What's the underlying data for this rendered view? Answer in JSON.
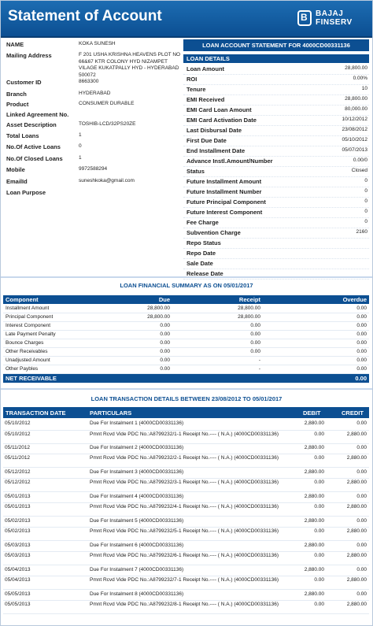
{
  "header": {
    "title": "Statement of Account",
    "logo_line1": "BAJAJ",
    "logo_line2": "FINSERV"
  },
  "customer": [
    {
      "label": "NAME",
      "value": "KOKA SUNESH"
    },
    {
      "label": "Mailing Address",
      "value": "F 201 USHA KRISHNA HEAVENS PLOT NO 66&67 KTR COLONY HYD NIZAMPET VILAGE KUKATPALLY HYD - HYDERABAD 500072"
    },
    {
      "label": "Customer ID",
      "value": "8663300"
    },
    {
      "label": "Branch",
      "value": "HYDERABAD"
    },
    {
      "label": "Product",
      "value": "CONSUMER DURABLE"
    },
    {
      "label": "Linked Agreement No.",
      "value": ""
    },
    {
      "label": "Asset Description",
      "value": "TOSHIB-LCD/32PS20ZE"
    },
    {
      "label": "Total Loans",
      "value": "1"
    },
    {
      "label": "No.Of Active Loans",
      "value": "0"
    },
    {
      "label": "No.Of Closed Loans",
      "value": "1"
    },
    {
      "label": "Mobile",
      "value": "9972588294"
    },
    {
      "label": "EmailId",
      "value": "suneshkoka@gmail.com"
    },
    {
      "label": "Loan Purpose",
      "value": ""
    }
  ],
  "loan": {
    "caption": "LOAN ACCOUNT STATEMENT FOR 4000CD00331136",
    "subcaption": "LOAN DETAILS",
    "rows": [
      {
        "k": "Loan Amount",
        "v": "28,800.00"
      },
      {
        "k": "ROI",
        "v": "0.00%"
      },
      {
        "k": "Tenure",
        "v": "10"
      },
      {
        "k": "EMI Received",
        "v": "28,800.00"
      },
      {
        "k": "EMI Card Loan Amount",
        "v": "80,000.00"
      },
      {
        "k": "EMI Card Activation Date",
        "v": "10/12/2012"
      },
      {
        "k": "Last Disbursal Date",
        "v": "23/08/2012"
      },
      {
        "k": "First Due Date",
        "v": "05/10/2012"
      },
      {
        "k": "End Installment Date",
        "v": "05/07/2013"
      },
      {
        "k": "Advance Instl.Amount/Number",
        "v": "0.00/0"
      },
      {
        "k": "Status",
        "v": "Closed"
      },
      {
        "k": "Future Installment Amount",
        "v": "0"
      },
      {
        "k": "Future Installment Number",
        "v": "0"
      },
      {
        "k": "Future Principal Component",
        "v": "0"
      },
      {
        "k": "Future Interest Component",
        "v": "0"
      },
      {
        "k": "Fee Charge",
        "v": "0"
      },
      {
        "k": "Subvention Charge",
        "v": "2160"
      },
      {
        "k": "Repo Status",
        "v": ""
      },
      {
        "k": "Repo Date",
        "v": ""
      },
      {
        "k": "Sale Date",
        "v": ""
      },
      {
        "k": "Release Date",
        "v": ""
      }
    ]
  },
  "financial_summary": {
    "title": "LOAN FINANCIAL SUMMARY AS ON 05/01/2017",
    "headers": [
      "Component",
      "Due",
      "Receipt",
      "Overdue"
    ],
    "rows": [
      [
        "Installment Amount",
        "28,800.00",
        "28,800.00",
        "0.00"
      ],
      [
        "Principal Component",
        "28,800.00",
        "28,800.00",
        "0.00"
      ],
      [
        "Interest Component",
        "0.00",
        "0.00",
        "0.00"
      ],
      [
        "Late Payment Penalty",
        "0.00",
        "0.00",
        "0.00"
      ],
      [
        "Bounce Charges",
        "0.00",
        "0.00",
        "0.00"
      ],
      [
        "Other Receivables",
        "0.00",
        "0.00",
        "0.00"
      ],
      [
        "Unadjusted Amount",
        "0.00",
        "-",
        "0.00"
      ],
      [
        "Other Paybles",
        "0.00",
        "-",
        "0.00"
      ]
    ],
    "net_label": "NET RECEIVABLE",
    "net_value": "0.00"
  },
  "transactions": {
    "title": "LOAN TRANSACTION DETAILS BETWEEN 23/08/2012 TO 05/01/2017",
    "headers": [
      "TRANSACTION DATE",
      "PARTICULARS",
      "DEBIT",
      "CREDIT"
    ],
    "rows": [
      [
        "05/10/2012",
        "Due For Instalment 1 (4000CD00331136)",
        "2,880.00",
        "0.00"
      ],
      [
        "05/10/2012",
        "Pmnt Rcvd Vide PDC No.:A8799232/1-1 Receipt No.---- ( N.A.) (4000CD00331136)",
        "0.00",
        "2,880.00"
      ],
      [
        "05/11/2012",
        "Due For Instalment 2 (4000CD00331136)",
        "2,880.00",
        "0.00"
      ],
      [
        "05/11/2012",
        "Pmnt Rcvd Vide PDC No.:A8799232/2-1 Receipt No.---- ( N.A.) (4000CD00331136)",
        "0.00",
        "2,880.00"
      ],
      [
        "05/12/2012",
        "Due For Instalment 3 (4000CD00331136)",
        "2,880.00",
        "0.00"
      ],
      [
        "05/12/2012",
        "Pmnt Rcvd Vide PDC No.:A8799232/3-1 Receipt No.---- ( N.A.) (4000CD00331136)",
        "0.00",
        "2,880.00"
      ],
      [
        "05/01/2013",
        "Due For Instalment 4 (4000CD00331136)",
        "2,880.00",
        "0.00"
      ],
      [
        "05/01/2013",
        "Pmnt Rcvd Vide PDC No.:A8799232/4-1 Receipt No.---- ( N.A.) (4000CD00331136)",
        "0.00",
        "2,880.00"
      ],
      [
        "05/02/2013",
        "Due For Instalment 5 (4000CD00331136)",
        "2,880.00",
        "0.00"
      ],
      [
        "05/02/2013",
        "Pmnt Rcvd Vide PDC No.:A8799232/5-1 Receipt No.---- ( N.A.) (4000CD00331136)",
        "0.00",
        "2,880.00"
      ],
      [
        "05/03/2013",
        "Due For Instalment 6 (4000CD00331136)",
        "2,880.00",
        "0.00"
      ],
      [
        "05/03/2013",
        "Pmnt Rcvd Vide PDC No.:A8799232/6-1 Receipt No.---- ( N.A.) (4000CD00331136)",
        "0.00",
        "2,880.00"
      ],
      [
        "05/04/2013",
        "Due For Instalment 7 (4000CD00331136)",
        "2,880.00",
        "0.00"
      ],
      [
        "05/04/2013",
        "Pmnt Rcvd Vide PDC No.:A8799232/7-1 Receipt No.---- ( N.A.) (4000CD00331136)",
        "0.00",
        "2,880.00"
      ],
      [
        "05/05/2013",
        "Due For Instalment 8 (4000CD00331136)",
        "2,880.00",
        "0.00"
      ],
      [
        "05/05/2013",
        "Pmnt Rcvd Vide PDC No.:A8799232/8-1 Receipt No.---- ( N.A.) (4000CD00331136)",
        "0.00",
        "2,880.00"
      ]
    ]
  }
}
